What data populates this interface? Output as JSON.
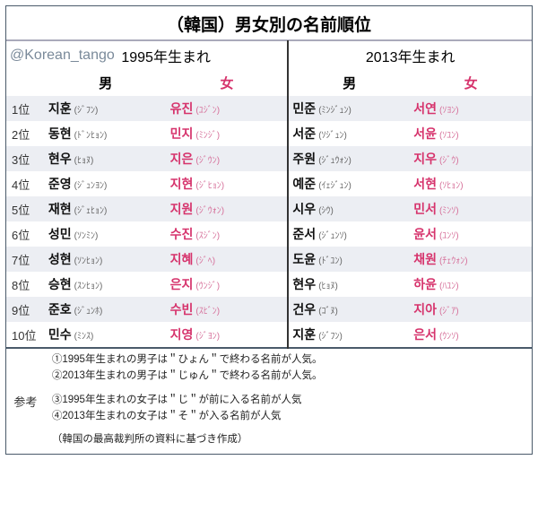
{
  "title": "（韓国）男女別の名前順位",
  "watermark": "@Korean_tango",
  "years": {
    "y1": "1995年生まれ",
    "y2": "2013年生まれ"
  },
  "genders": {
    "m": "男",
    "f": "女"
  },
  "ranks": [
    "1位",
    "2位",
    "3位",
    "4位",
    "5位",
    "6位",
    "7位",
    "8位",
    "9位",
    "10位"
  ],
  "rows": [
    {
      "m1": "지훈",
      "m1f": "(ｼﾞﾌﾝ)",
      "f1": "유진",
      "f1f": "(ﾕｼﾞﾝ)",
      "m2": "민준",
      "m2f": "(ﾐﾝｼﾞｭﾝ)",
      "f2": "서연",
      "f2f": "(ｿﾖﾝ)"
    },
    {
      "m1": "동현",
      "m1f": "(ﾄﾞﾝﾋｮﾝ)",
      "f1": "민지",
      "f1f": "(ﾐﾝｼﾞ)",
      "m2": "서준",
      "m2f": "(ｿｼﾞｭﾝ)",
      "f2": "서윤",
      "f2f": "(ｿﾕﾝ)"
    },
    {
      "m1": "현우",
      "m1f": "(ﾋｮﾇ)",
      "f1": "지은",
      "f1f": "(ｼﾞｳﾝ)",
      "m2": "주원",
      "m2f": "(ｼﾞｭｳｫﾝ)",
      "f2": "지우",
      "f2f": "(ｼﾞｳ)"
    },
    {
      "m1": "준영",
      "m1f": "(ｼﾞｭﾝﾖﾝ)",
      "f1": "지현",
      "f1f": "(ｼﾞﾋｮﾝ)",
      "m2": "예준",
      "m2f": "(ｲｪｼﾞｭﾝ)",
      "f2": "서현",
      "f2f": "(ｿﾋｮﾝ)"
    },
    {
      "m1": "재현",
      "m1f": "(ｼﾞｪﾋｮﾝ)",
      "f1": "지원",
      "f1f": "(ｼﾞｳｫﾝ)",
      "m2": "시우",
      "m2f": "(ｼｳ)",
      "f2": "민서",
      "f2f": "(ﾐﾝｿ)"
    },
    {
      "m1": "성민",
      "m1f": "(ｿﾝﾐﾝ)",
      "f1": "수진",
      "f1f": "(ｽｼﾞﾝ)",
      "m2": "준서",
      "m2f": "(ｼﾞｭﾝｿ)",
      "f2": "윤서",
      "f2f": "(ﾕﾝｿ)"
    },
    {
      "m1": "성현",
      "m1f": "(ｿﾝﾋｮﾝ)",
      "f1": "지혜",
      "f1f": "(ｼﾞﾍ)",
      "m2": "도윤",
      "m2f": "(ﾄﾞﾕﾝ)",
      "f2": "채원",
      "f2f": "(ﾁｪｳｫﾝ)"
    },
    {
      "m1": "승현",
      "m1f": "(ｽﾝﾋｮﾝ)",
      "f1": "은지",
      "f1f": "(ｳﾝｼﾞ)",
      "m2": "현우",
      "m2f": "(ﾋｮﾇ)",
      "f2": "하윤",
      "f2f": "(ﾊﾕﾝ)"
    },
    {
      "m1": "준호",
      "m1f": "(ｼﾞｭﾝﾎ)",
      "f1": "수빈",
      "f1f": "(ｽﾋﾞﾝ)",
      "m2": "건우",
      "m2f": "(ｺﾞﾇ)",
      "f2": "지아",
      "f2f": "(ｼﾞｱ)"
    },
    {
      "m1": "민수",
      "m1f": "(ﾐﾝｽ)",
      "f1": "지영",
      "f1f": "(ｼﾞﾖﾝ)",
      "m2": "지훈",
      "m2f": "(ｼﾞﾌﾝ)",
      "f2": "은서",
      "f2f": "(ｳﾝｿ)"
    }
  ],
  "ref": {
    "label": "参考",
    "lines": [
      "①1995年生まれの男子は＂ひょん＂で終わる名前が人気。",
      "②2013年生まれの男子は＂じゅん＂で終わる名前が人気。",
      "",
      "③1995年生まれの女子は＂じ＂が前に入る名前が人気",
      "④2013年生まれの女子は＂そ＂が入る名前が人気",
      "",
      "（韓国の最高裁判所の資料に基づき作成）"
    ]
  },
  "colors": {
    "border": "#4a5a6a",
    "stripe": "#eceef3",
    "female": "#d6336c"
  }
}
